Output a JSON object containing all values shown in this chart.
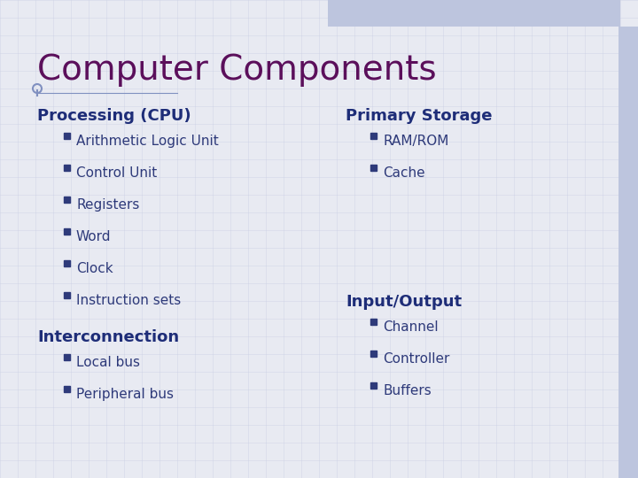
{
  "title": "Computer Components",
  "title_color": "#5B0F5B",
  "title_fontsize": 28,
  "bg_color": "#E8EAF2",
  "grid_color": "#C5CAE0",
  "header_color": "#1E2D78",
  "item_color": "#2E3A7A",
  "bullet_color": "#2E3A7A",
  "top_bar_color": "#BDC5DE",
  "right_bar_color": "#BDC5DE",
  "col1_header1": "Processing (CPU)",
  "col1_items1": [
    "Arithmetic Logic Unit",
    "Control Unit",
    "Registers",
    "Word",
    "Clock",
    "Instruction sets"
  ],
  "col1_header2": "Interconnection",
  "col1_items2": [
    "Local bus",
    "Peripheral bus"
  ],
  "col2_header1": "Primary Storage",
  "col2_items1": [
    "RAM/ROM",
    "Cache"
  ],
  "col2_header2": "Input/Output",
  "col2_items2": [
    "Channel",
    "Controller",
    "Buffers"
  ],
  "header_fontsize": 13,
  "item_fontsize": 11,
  "deco_color": "#8090C0"
}
